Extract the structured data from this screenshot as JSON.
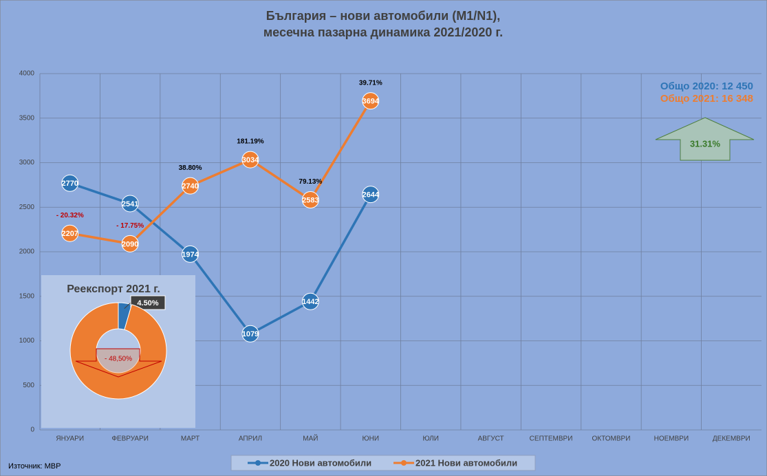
{
  "chart_data": [
    {
      "type": "line",
      "title": [
        "България – нови автомобили (M1/N1),",
        "месечна пазарна динамика 2021/2020 г."
      ],
      "categories": [
        "ЯНУАРИ",
        "ФЕВРУАРИ",
        "МАРТ",
        "АПРИЛ",
        "МАЙ",
        "ЮНИ",
        "ЮЛИ",
        "АВГУСТ",
        "СЕПТЕМВРИ",
        "ОКТОМВРИ",
        "НОЕМВРИ",
        "ДЕКЕМВРИ"
      ],
      "series": [
        {
          "name": "2020 Нови автомобили",
          "color": "#2e75b6",
          "values": [
            2770,
            2541,
            1974,
            1079,
            1442,
            2644,
            null,
            null,
            null,
            null,
            null,
            null
          ]
        },
        {
          "name": "2021 Нови автомобили",
          "color": "#ed7d31",
          "values": [
            2207,
            2090,
            2740,
            3034,
            2583,
            3694,
            null,
            null,
            null,
            null,
            null,
            null
          ]
        }
      ],
      "change_labels": [
        "- 20.32%",
        "- 17.75%",
        "38.80%",
        "181.19%",
        "79.13%",
        "39.71%",
        null,
        null,
        null,
        null,
        null,
        null
      ],
      "negative_color": "#c00000",
      "positive_color": "#000000",
      "ylim": [
        0,
        4000
      ],
      "yticks": [
        0,
        500,
        1000,
        1500,
        2000,
        2500,
        3000,
        3500,
        4000
      ],
      "grid": true,
      "legend": "bottom",
      "totals": [
        {
          "text": "Общо 2020: 12 450",
          "color": "#2e75b6"
        },
        {
          "text": "Общо 2021: 16 348",
          "color": "#ed7d31"
        }
      ],
      "total_change": "31.31%",
      "source": "Източник: МВР"
    },
    {
      "type": "pie",
      "donut": true,
      "title": "Реекспорт 2021 г.",
      "values": [
        4.5,
        95.5
      ],
      "value_labels": [
        "4.50%",
        null
      ],
      "colors": [
        "#2e75b6",
        "#ed7d31"
      ],
      "arrow_label": "- 48,50%"
    }
  ]
}
